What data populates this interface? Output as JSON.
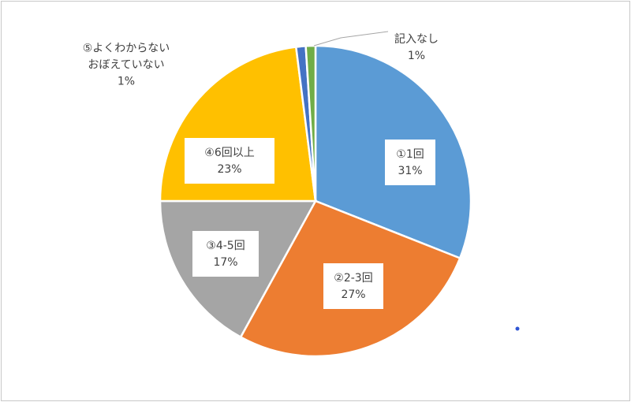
{
  "chart_data": {
    "type": "pie",
    "title": "",
    "slices": [
      {
        "lines": [
          "①1回",
          "31%"
        ],
        "value": 31,
        "color": "#5B9BD5"
      },
      {
        "lines": [
          "②2-3回",
          "27%"
        ],
        "value": 27,
        "color": "#ED7D31"
      },
      {
        "lines": [
          "③4-5回",
          "17%"
        ],
        "value": 17,
        "color": "#A5A5A5"
      },
      {
        "lines": [
          "④6回以上",
          "23%"
        ],
        "value": 23,
        "color": "#FFC000"
      },
      {
        "lines": [
          "⑤よくわからない",
          "おぼえていない",
          "1%"
        ],
        "value": 1,
        "color": "#4472C4"
      },
      {
        "lines": [
          "記入なし",
          "1%"
        ],
        "value": 1,
        "color": "#70AD47"
      }
    ],
    "legend": "none",
    "marker_color": "#2F55D4"
  }
}
